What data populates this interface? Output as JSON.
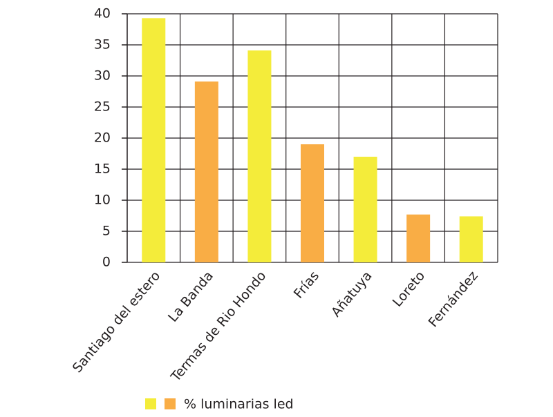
{
  "chart_data": {
    "type": "bar",
    "categories": [
      "Santiago del estero",
      "La Banda",
      "Termas de Rio Hondo",
      "Frías",
      "Añatuya",
      "Loreto",
      "Fernández"
    ],
    "series": [
      {
        "name": "% luminarias led",
        "colors": [
          "#f4ec3a",
          "#f9ad45"
        ],
        "values": [
          39.3,
          29.1,
          34.1,
          19,
          17,
          7.7,
          7.4
        ]
      }
    ],
    "ylim": [
      0,
      40
    ],
    "yticks": [
      0,
      5,
      10,
      15,
      20,
      25,
      30,
      35,
      40
    ],
    "grid": true
  }
}
